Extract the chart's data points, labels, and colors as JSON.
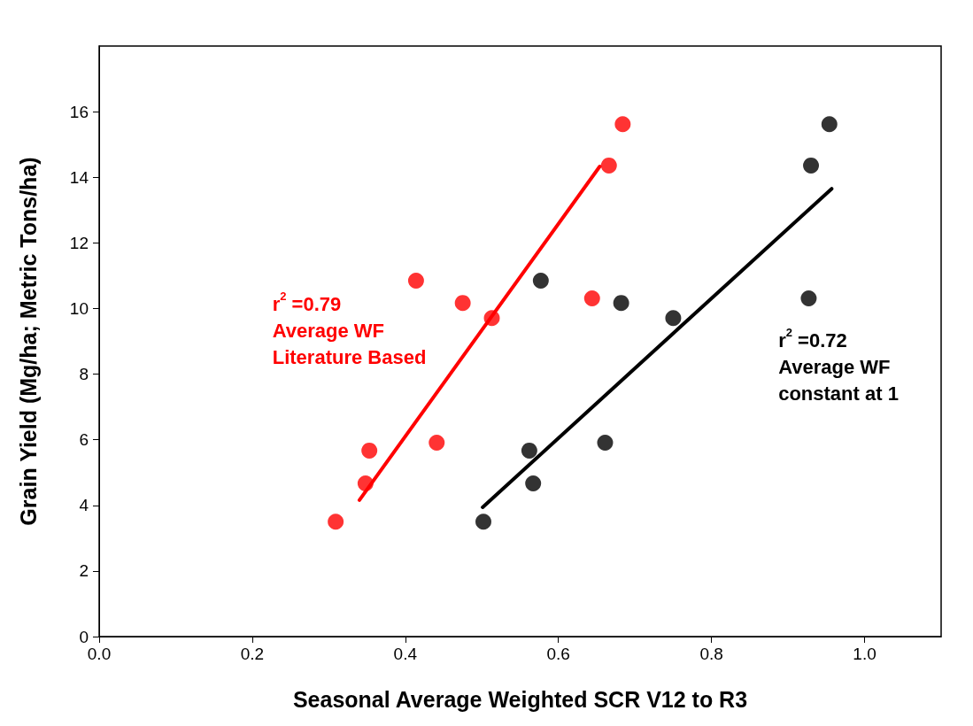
{
  "chart_data": {
    "type": "scatter",
    "xlabel": "Seasonal Average Weighted SCR V12 to R3",
    "ylabel": "Grain Yield (Mg/ha; Metric Tons/ha)",
    "xlim": [
      0,
      1.1
    ],
    "xticks": [
      {
        "value": 0,
        "label": "0.0"
      },
      0.2,
      0.4,
      0.6,
      0.8,
      {
        "value": 1,
        "label": "1.0"
      }
    ],
    "ylim": [
      0,
      18
    ],
    "yticks": [
      0,
      2,
      4,
      6,
      8,
      10,
      12,
      14,
      16
    ],
    "grid": false,
    "marker": "circle",
    "series": [
      {
        "color": "#ff0000",
        "x": [
          0.309,
          0.348,
          0.353,
          0.414,
          0.441,
          0.475,
          0.513,
          0.644,
          0.666,
          0.684
        ],
        "values": [
          3.5,
          4.67,
          5.67,
          10.85,
          5.91,
          10.17,
          9.71,
          10.31,
          14.36,
          15.62
        ]
      },
      {
        "color": "#000000",
        "x": [
          0.502,
          0.562,
          0.567,
          0.577,
          0.661,
          0.682,
          0.75,
          0.927,
          0.93,
          0.954
        ],
        "values": [
          3.5,
          5.67,
          4.67,
          10.85,
          5.91,
          10.17,
          9.71,
          10.31,
          14.36,
          15.62
        ]
      },
      {
        "type": "line",
        "color": "#ff0000",
        "marker": "none",
        "line_style": "solid",
        "x": [
          0.34,
          0.654
        ],
        "values": [
          4.16,
          14.33
        ]
      },
      {
        "type": "line",
        "color": "#000000",
        "marker": "none",
        "line_style": "solid",
        "x": [
          0.501,
          0.957
        ],
        "values": [
          3.94,
          13.65
        ]
      }
    ],
    "annotations": [
      "r$^{2}$ =0.79\nAverage WF\nLiterature Based",
      "r$^{2}$ =0.72\nAverage WF\nconstant at 1"
    ]
  }
}
